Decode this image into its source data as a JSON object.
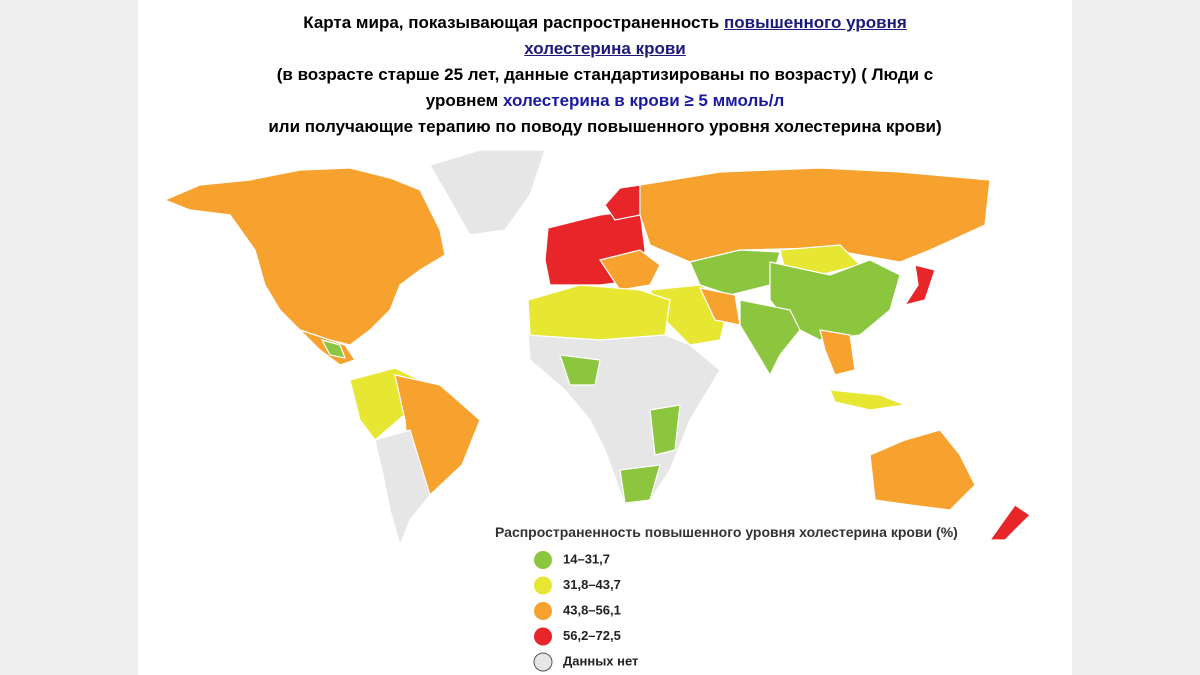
{
  "title": [
    "Карта мира, показывающая распространенность ",
    "повышенного уровня",
    "холестерина крови",
    "(в возрасте старше 25 лет, данные стандартизированы по возрасту) ( Люди с",
    "уровнем ",
    "холестерина в крови ≥ 5 ммоль/л",
    "или получающие терапию по поводу повышенного уровня холестерина крови)"
  ],
  "legend": {
    "title": "Распространенность повышенного уровня холестерина крови (%)",
    "items": [
      {
        "label": "14–31,7",
        "color": "#8cc63f"
      },
      {
        "label": "31,8–43,7",
        "color": "#e6e633"
      },
      {
        "label": "43,8–56,1",
        "color": "#f7a12f"
      },
      {
        "label": "56,2–72,5",
        "color": "#e8262a"
      },
      {
        "label": "Данных нет",
        "color": "#e6e6e6"
      }
    ]
  }
}
